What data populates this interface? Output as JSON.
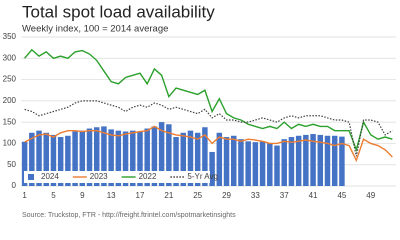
{
  "chart_data": {
    "type": "combo",
    "title": "Total spot load availability",
    "subtitle": "Weekly index, 100 = 2014 average",
    "source": "Source: Truckstop, FTR - http://freight.ftrintel.com/spotmarketinsights",
    "x": [
      1,
      2,
      3,
      4,
      5,
      6,
      7,
      8,
      9,
      10,
      11,
      12,
      13,
      14,
      15,
      16,
      17,
      18,
      19,
      20,
      21,
      22,
      23,
      24,
      25,
      26,
      27,
      28,
      29,
      30,
      31,
      32,
      33,
      34,
      35,
      36,
      37,
      38,
      39,
      40,
      41,
      42,
      43,
      44,
      45,
      46,
      47,
      48,
      49,
      50,
      51,
      52
    ],
    "xlim": [
      0.5,
      52.5
    ],
    "xticks": [
      1,
      5,
      9,
      13,
      17,
      21,
      25,
      29,
      33,
      37,
      41,
      45,
      49
    ],
    "ylim": [
      0,
      350
    ],
    "yticks": [
      0,
      50,
      100,
      150,
      200,
      250,
      300,
      350
    ],
    "grid": true,
    "legend": "lower left",
    "series": [
      {
        "name": "2024",
        "type": "bar",
        "color": "#4472c4",
        "values": [
          104,
          125,
          130,
          125,
          120,
          115,
          118,
          128,
          130,
          135,
          138,
          140,
          133,
          130,
          128,
          130,
          128,
          135,
          140,
          150,
          145,
          115,
          125,
          130,
          125,
          138,
          80,
          125,
          115,
          118,
          110,
          105,
          103,
          105,
          100,
          95,
          110,
          115,
          118,
          120,
          122,
          120,
          118,
          118,
          116,
          null,
          null,
          null,
          null,
          null,
          null,
          null
        ]
      },
      {
        "name": "2023",
        "type": "line",
        "color": "#ed7d31",
        "dash": false,
        "values": [
          103,
          112,
          120,
          122,
          115,
          125,
          130,
          130,
          128,
          130,
          130,
          125,
          120,
          118,
          122,
          125,
          128,
          130,
          140,
          130,
          125,
          120,
          118,
          115,
          110,
          120,
          100,
          115,
          110,
          110,
          105,
          110,
          108,
          105,
          100,
          100,
          105,
          103,
          105,
          108,
          105,
          103,
          100,
          95,
          100,
          95,
          60,
          110,
          100,
          95,
          85,
          68
        ]
      },
      {
        "name": "2022",
        "type": "line",
        "color": "#2ca02c",
        "dash": false,
        "values": [
          300,
          320,
          305,
          315,
          300,
          305,
          300,
          315,
          318,
          310,
          295,
          270,
          245,
          240,
          255,
          260,
          265,
          240,
          275,
          260,
          210,
          230,
          225,
          220,
          215,
          225,
          175,
          205,
          170,
          160,
          155,
          145,
          140,
          135,
          140,
          135,
          150,
          135,
          145,
          140,
          145,
          140,
          140,
          130,
          130,
          130,
          85,
          150,
          120,
          110,
          115,
          110
        ]
      },
      {
        "name": "5-Yr Avg",
        "type": "line",
        "color": "#404040",
        "dash": true,
        "values": [
          180,
          175,
          165,
          170,
          175,
          180,
          185,
          195,
          200,
          200,
          200,
          195,
          190,
          185,
          175,
          185,
          190,
          185,
          195,
          190,
          180,
          185,
          180,
          175,
          170,
          180,
          160,
          170,
          155,
          155,
          150,
          150,
          155,
          160,
          155,
          150,
          160,
          165,
          160,
          165,
          165,
          165,
          160,
          155,
          155,
          150,
          70,
          155,
          155,
          150,
          120,
          130
        ]
      }
    ]
  }
}
